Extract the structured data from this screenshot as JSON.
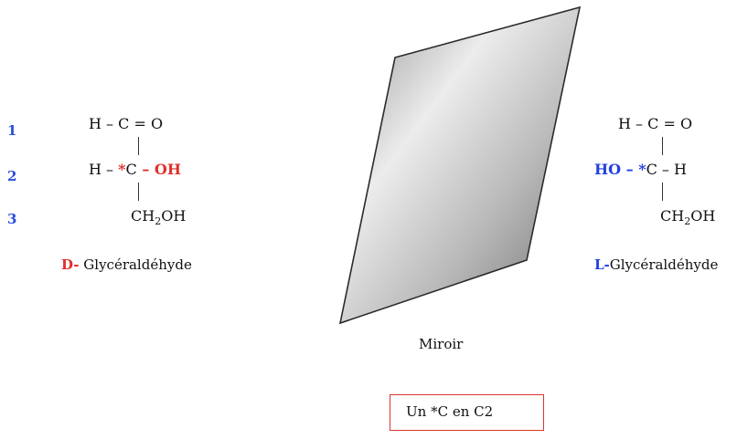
{
  "carbon_numbers": [
    "1",
    "2",
    "3"
  ],
  "d_form": {
    "row1": "H – C = O",
    "row2_h": "H – ",
    "row2_star": "*",
    "row2_c": "C",
    "row2_oh": " – OH",
    "row3_main": "CH",
    "row3_sub": "2",
    "row3_tail": "OH",
    "label_prefix": "D-",
    "label_name": " Glycéraldéhyde"
  },
  "l_form": {
    "row1": "H – C = O",
    "row2_ho": "HO – *",
    "row2_c": "C – H",
    "row3_main": "CH",
    "row3_sub": "2",
    "row3_tail": "OH",
    "label_prefix": "L-",
    "label_name": "Glycéraldéhyde"
  },
  "mirror": {
    "label": "Miroir"
  },
  "note_box": {
    "text": "Un *C  en C2"
  },
  "colors": {
    "d_accent": "#e0302a",
    "l_accent": "#1f3fe0",
    "numbers": "#2a4de0",
    "box_border": "#d8352b"
  }
}
